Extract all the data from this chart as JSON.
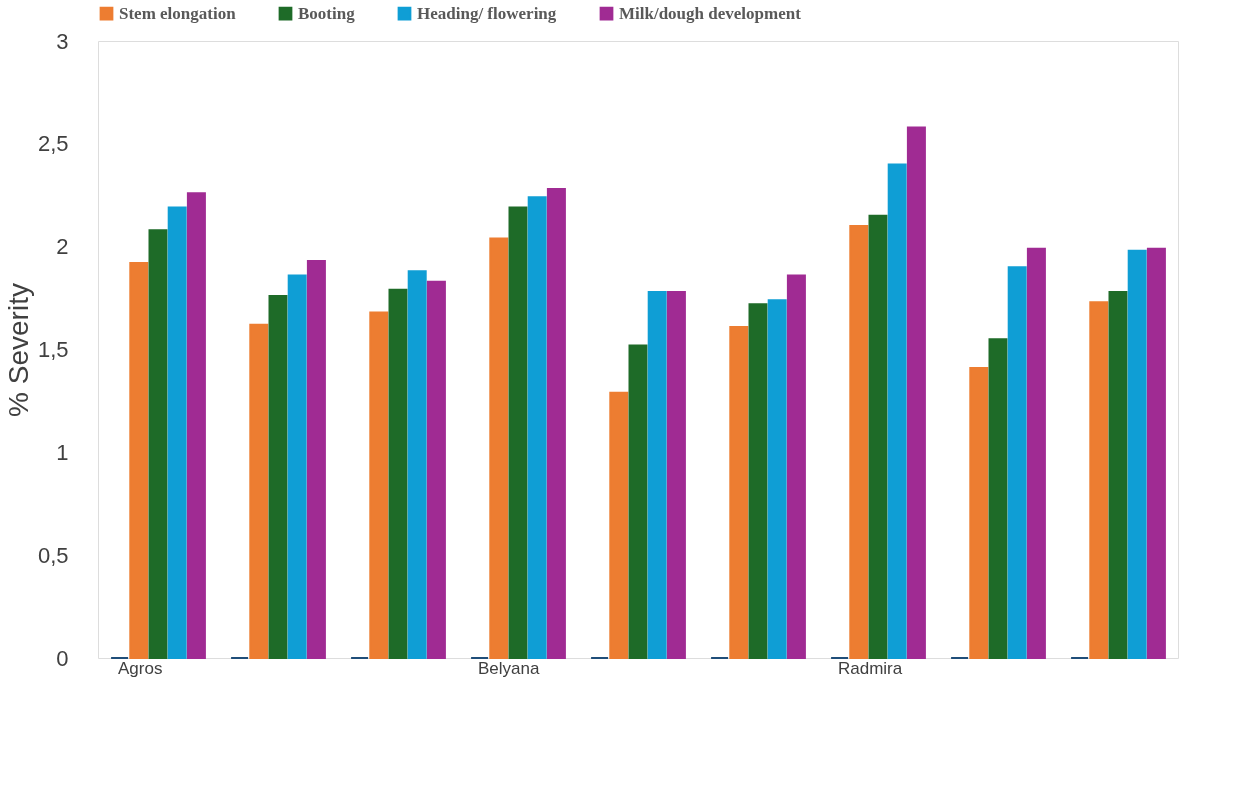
{
  "chart_data": {
    "type": "bar",
    "ylabel": "% Severity",
    "categories": [
      "Agros",
      null,
      null,
      "Belyana",
      null,
      null,
      "Radmira",
      null,
      null
    ],
    "series": [
      {
        "color": "#1f4e79",
        "values": [
          0,
          0,
          0,
          0,
          0,
          0,
          0,
          0,
          0
        ]
      },
      {
        "name": "Stem elongation",
        "color": "#ed7d31",
        "values": [
          1.92,
          1.62,
          1.68,
          2.04,
          1.29,
          1.61,
          2.1,
          1.41,
          1.73
        ]
      },
      {
        "name": "Booting",
        "color": "#1e6b28",
        "values": [
          2.08,
          1.76,
          1.79,
          2.19,
          1.52,
          1.72,
          2.15,
          1.55,
          1.78
        ]
      },
      {
        "name": "Heading/ flowering",
        "color": "#0f9ed5",
        "values": [
          2.19,
          1.86,
          1.88,
          2.24,
          1.78,
          1.74,
          2.4,
          1.9,
          1.98
        ]
      },
      {
        "name": "Milk/dough development",
        "color": "#a02b93",
        "values": [
          2.26,
          1.93,
          1.83,
          2.28,
          1.78,
          1.86,
          2.58,
          1.99,
          1.99
        ]
      }
    ],
    "ylim": [
      0,
      3
    ],
    "yticks": [
      0,
      {
        "value": 0.5,
        "label": "0,5"
      },
      1,
      {
        "value": 1.5,
        "label": "1,5"
      },
      2,
      {
        "value": 2.5,
        "label": "2,5"
      },
      3
    ],
    "grid": false,
    "legend": "top"
  }
}
